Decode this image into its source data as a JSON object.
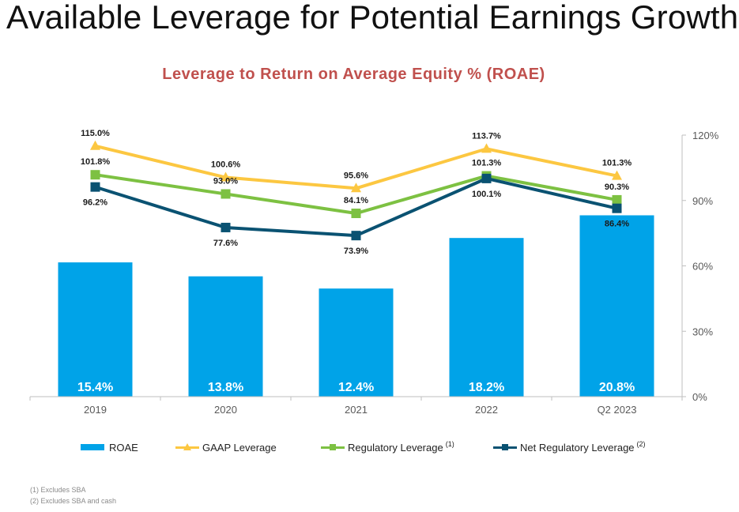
{
  "slide_title": "Available Leverage for Potential Earnings Growth",
  "chart_data": {
    "type": "bar+line",
    "title": "Leverage to Return on Average Equity % (ROAE)",
    "categories": [
      "2019",
      "2020",
      "2021",
      "2022",
      "Q2 2023"
    ],
    "bar_series": {
      "name": "ROAE",
      "values": [
        15.4,
        13.8,
        12.4,
        18.2,
        20.8
      ],
      "labels": [
        "15.4%",
        "13.8%",
        "12.4%",
        "18.2%",
        "20.8%"
      ],
      "color": "#00a3e8"
    },
    "line_series": [
      {
        "name": "GAAP Leverage",
        "values": [
          115.0,
          100.6,
          95.6,
          113.7,
          101.3
        ],
        "labels": [
          "115.0%",
          "100.6%",
          "95.6%",
          "113.7%",
          "101.3%"
        ],
        "color": "#fcc741",
        "marker": "triangle",
        "label_position": "above"
      },
      {
        "name": "Regulatory Leverage",
        "superscript": "(1)",
        "values": [
          101.8,
          93.0,
          84.1,
          101.3,
          90.3
        ],
        "labels": [
          "101.8%",
          "93.0%",
          "84.1%",
          "101.3%",
          "90.3%"
        ],
        "color": "#7dc142",
        "marker": "square",
        "label_position": "above"
      },
      {
        "name": "Net Regulatory Leverage",
        "superscript": "(2)",
        "values": [
          96.2,
          77.6,
          73.9,
          100.1,
          86.4
        ],
        "labels": [
          "96.2%",
          "77.6%",
          "73.9%",
          "100.1%",
          "86.4%"
        ],
        "color": "#0a5272",
        "marker": "square",
        "label_position": "below"
      }
    ],
    "y_right_axis": {
      "min": 0,
      "max": 120,
      "ticks": [
        "0%",
        "30%",
        "60%",
        "90%",
        "120%"
      ],
      "tick_values": [
        0,
        30,
        60,
        90,
        120
      ]
    },
    "bar_axis": {
      "min": 0,
      "max": 30
    },
    "grid": false,
    "legend_position": "bottom"
  },
  "footnotes": [
    "(1) Excludes SBA",
    "(2) Excludes SBA and cash"
  ]
}
